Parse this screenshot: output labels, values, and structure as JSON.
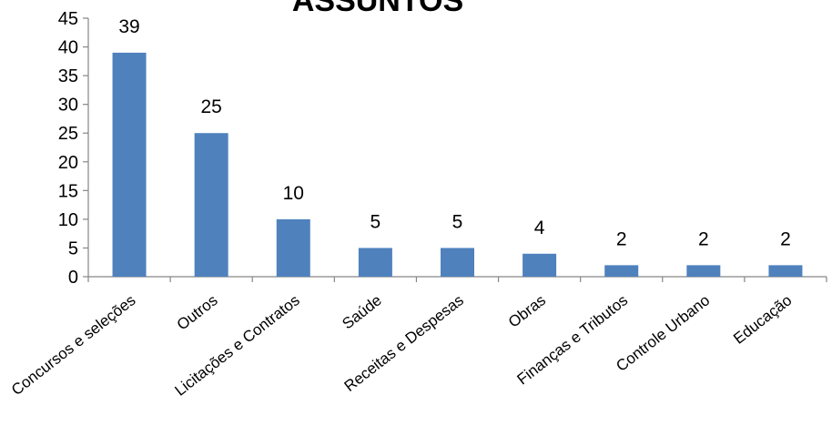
{
  "chart_data": {
    "type": "bar",
    "title": "ASSUNTOS",
    "categories": [
      "Concursos e seleções",
      "Outros",
      "Licitações e Contratos",
      "Saúde",
      "Receitas e Despesas",
      "Obras",
      "Finanças e Tributos",
      "Controle Urbano",
      "Educação"
    ],
    "values": [
      39,
      25,
      10,
      5,
      5,
      4,
      2,
      2,
      2
    ],
    "ylim": [
      0,
      45
    ],
    "yticks": [
      0,
      5,
      10,
      15,
      20,
      25,
      30,
      35,
      40,
      45
    ],
    "xlabel": "",
    "ylabel": "",
    "grid": false,
    "bar_color": "#4F81BD",
    "data_labels": true
  }
}
